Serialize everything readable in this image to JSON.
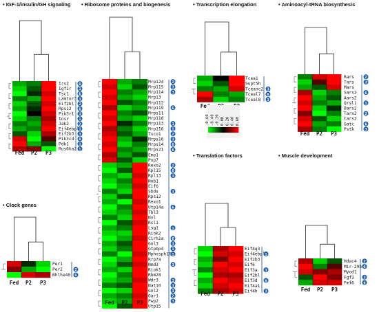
{
  "colors": {
    "high": "#ff0000",
    "mid": "#000000",
    "low": "#00ff00",
    "badge": "#1f5faa",
    "bracket": "#2a5aa0"
  },
  "color_scale": {
    "ticks": [
      "-0.60",
      "-0.40",
      "-0.20",
      "0.00",
      "0.20",
      "0.40",
      "0.60"
    ],
    "min": -0.6,
    "max": 0.6
  },
  "panels": [
    {
      "id": "igf",
      "title": "IGF-1/insulin/GH signaling",
      "conditions": [
        "Fed",
        "P2",
        "P3"
      ],
      "genes": [
        "Irs2",
        "Igf1r",
        "Tsc1",
        "Lamtor3",
        "Eif2bl",
        "Rps12",
        "Pik3r1",
        "Insr",
        "Jak2",
        "Eif4ebpl",
        "Eif2b3",
        "Pik3cd",
        "Pdk1",
        "Rus6ka2"
      ],
      "badges": [
        "6",
        "1",
        "6",
        "3",
        "2",
        "6",
        "3",
        "1",
        "2",
        "1",
        "3",
        "6",
        "1",
        "1"
      ],
      "values": [
        [
          -0.4,
          -0.3,
          0.6
        ],
        [
          -0.5,
          -0.2,
          0.6
        ],
        [
          -0.6,
          -0.1,
          0.5
        ],
        [
          -0.3,
          -0.4,
          0.6
        ],
        [
          -0.5,
          -0.2,
          0.5
        ],
        [
          -0.4,
          -0.1,
          0.6
        ],
        [
          -0.6,
          0.0,
          0.5
        ],
        [
          -0.5,
          -0.3,
          0.4
        ],
        [
          -0.3,
          -0.4,
          0.5
        ],
        [
          -0.4,
          -0.3,
          0.6
        ],
        [
          -0.2,
          -0.5,
          0.4
        ],
        [
          0.5,
          -0.6,
          0.2
        ],
        [
          0.6,
          -0.4,
          -0.2
        ],
        [
          0.4,
          0.3,
          -0.6
        ]
      ]
    },
    {
      "id": "ribo",
      "title": "Ribosome proteins and biogenesis",
      "conditions": [
        "Fed",
        "P2",
        "P3"
      ],
      "genes": [
        "Mrp124",
        "Mrp115",
        "Mrp114",
        "Mrp13",
        "Mrp112",
        "Mrp119",
        "Mrps11",
        "Mrp118",
        "Mrp113",
        "Mrp116",
        "Tsco1",
        "Mrps16",
        "Mrps14",
        "Mrps21",
        "Emp1",
        "Pop7",
        "Rexo2",
        "Rpl15",
        "Rpl13",
        "Nob1",
        "Eif6",
        "Sbds",
        "Rps12",
        "Rexo1",
        "Utp14a",
        "Tbl3",
        "Nvl",
        "Rcl1",
        "Lsg1",
        "Riok2",
        "Cirh1a",
        "Gnl3",
        "Gtpbp4",
        "Mphosph10",
        "Rrp7a",
        "Nmd3",
        "Riok1",
        "Rbm28",
        "Wdr3",
        "Nat10",
        "Gnl2",
        "Gar1",
        "Pwp2",
        "Utp15"
      ],
      "badges": [
        "2",
        "3",
        "3",
        "",
        "",
        "6",
        "",
        "",
        "3",
        "1",
        "2",
        "3",
        "6",
        "6",
        "",
        "",
        "2",
        "6",
        "3",
        "",
        "",
        "3",
        "",
        "",
        "6",
        "",
        "",
        "",
        "1",
        "",
        "6",
        "3",
        "1",
        "1",
        "",
        "3",
        "",
        "",
        "3",
        "3",
        "3",
        "2",
        "3",
        ""
      ],
      "values": [
        [
          0.6,
          -0.4,
          -0.3
        ],
        [
          0.5,
          -0.5,
          -0.2
        ],
        [
          0.6,
          -0.3,
          -0.4
        ],
        [
          0.5,
          -0.4,
          -0.5
        ],
        [
          0.6,
          -0.2,
          -0.3
        ],
        [
          0.4,
          -0.5,
          -0.4
        ],
        [
          0.6,
          -0.3,
          -0.2
        ],
        [
          0.5,
          -0.4,
          -0.5
        ],
        [
          0.6,
          -0.1,
          -0.3
        ],
        [
          0.4,
          -0.3,
          -0.5
        ],
        [
          0.5,
          -0.2,
          -0.4
        ],
        [
          0.6,
          -0.4,
          -0.1
        ],
        [
          0.5,
          -0.5,
          -0.3
        ],
        [
          0.6,
          -0.3,
          -0.4
        ],
        [
          0.4,
          -0.4,
          -0.2
        ],
        [
          0.5,
          -0.2,
          -0.5
        ],
        [
          -0.5,
          -0.4,
          0.6
        ],
        [
          -0.6,
          -0.2,
          0.6
        ],
        [
          -0.4,
          -0.5,
          0.5
        ],
        [
          -0.5,
          -0.3,
          0.6
        ],
        [
          -0.6,
          -0.4,
          0.5
        ],
        [
          -0.3,
          -0.5,
          0.6
        ],
        [
          -0.5,
          -0.2,
          0.6
        ],
        [
          -0.4,
          -0.6,
          0.5
        ],
        [
          -0.6,
          -0.3,
          0.6
        ],
        [
          -0.5,
          -0.4,
          0.5
        ],
        [
          -0.3,
          -0.5,
          0.6
        ],
        [
          -0.6,
          -0.2,
          0.5
        ],
        [
          -0.4,
          -0.3,
          0.6
        ],
        [
          -0.5,
          -0.5,
          0.6
        ],
        [
          -0.6,
          -0.4,
          0.5
        ],
        [
          -0.4,
          -0.2,
          0.6
        ],
        [
          -0.5,
          -0.3,
          0.6
        ],
        [
          -0.3,
          -0.6,
          0.5
        ],
        [
          -0.6,
          -0.4,
          0.6
        ],
        [
          -0.5,
          -0.2,
          0.5
        ],
        [
          -0.4,
          -0.5,
          0.6
        ],
        [
          -0.6,
          -0.3,
          0.6
        ],
        [
          -0.5,
          -0.4,
          0.5
        ],
        [
          -0.3,
          -0.2,
          0.6
        ],
        [
          -0.6,
          -0.5,
          0.6
        ],
        [
          -0.4,
          -0.3,
          0.5
        ],
        [
          -0.5,
          -0.4,
          0.6
        ],
        [
          -0.6,
          -0.2,
          0.6
        ]
      ]
    },
    {
      "id": "transcription",
      "title": "Transcription elongation",
      "conditions": [
        "Fed",
        "P2",
        "P3"
      ],
      "genes": [
        "Tcea1",
        "Supt5h",
        "Tceanc2",
        "Tceal7",
        "Tceal8"
      ],
      "badges": [
        "",
        "",
        "3",
        "6",
        "3"
      ],
      "values": [
        [
          -0.4,
          0.0,
          0.6
        ],
        [
          -0.5,
          -0.2,
          0.6
        ],
        [
          -0.3,
          -0.4,
          0.5
        ],
        [
          0.6,
          -0.3,
          -0.4
        ],
        [
          0.4,
          -0.5,
          -0.3
        ]
      ]
    },
    {
      "id": "trna",
      "title": "Aminoacyl-tRNA  biosynthesis",
      "conditions": [
        "Fed",
        "P2",
        "P3"
      ],
      "genes": [
        "Rars",
        "Tars",
        "Mars",
        "Sars2",
        "Aars2",
        "Qrsl1",
        "Dars2",
        "Tars2",
        "Cars2",
        "Gatc",
        "Pstk"
      ],
      "badges": [
        "2",
        "3",
        "",
        "6",
        "",
        "1",
        "",
        "2",
        "",
        "6",
        "3"
      ],
      "values": [
        [
          -0.3,
          0.5,
          0.6
        ],
        [
          -0.5,
          0.2,
          0.6
        ],
        [
          -0.4,
          -0.2,
          0.5
        ],
        [
          0.4,
          -0.5,
          -0.3
        ],
        [
          0.6,
          -0.4,
          -0.2
        ],
        [
          0.5,
          -0.3,
          -0.4
        ],
        [
          0.6,
          -0.5,
          -0.1
        ],
        [
          0.3,
          -0.6,
          -0.3
        ],
        [
          0.5,
          -0.2,
          -0.5
        ],
        [
          0.6,
          -0.4,
          -0.3
        ],
        [
          0.4,
          -0.3,
          -0.6
        ]
      ]
    },
    {
      "id": "clock",
      "title": "Clock genes",
      "conditions": [
        "Fed",
        "P2",
        "P3"
      ],
      "genes": [
        "Per1",
        "Per2",
        "Bhlhe40"
      ],
      "badges": [
        "",
        "2",
        "6"
      ],
      "values": [
        [
          0.5,
          -0.1,
          -0.5
        ],
        [
          0.3,
          -0.4,
          -0.6
        ],
        [
          -0.6,
          0.5,
          0.4
        ]
      ]
    },
    {
      "id": "translation",
      "title": "Translation factors",
      "conditions": [
        "Fed",
        "P2",
        "P3"
      ],
      "genes": [
        "Eif4g3",
        "Eif4ebpl",
        "Eif2b3",
        "Eif6",
        "Eif3a",
        "Eif2bl",
        "Eif3d",
        "Eif4a1",
        "Eif4h"
      ],
      "badges": [
        "",
        "1",
        "",
        "",
        "3",
        "",
        "6",
        "",
        "3"
      ],
      "values": [
        [
          -0.5,
          0.4,
          0.6
        ],
        [
          -0.6,
          0.5,
          0.5
        ],
        [
          -0.4,
          0.3,
          0.6
        ],
        [
          -0.5,
          0.6,
          0.5
        ],
        [
          -0.3,
          0.5,
          0.6
        ],
        [
          -0.6,
          0.4,
          0.4
        ],
        [
          -0.4,
          0.6,
          0.5
        ],
        [
          -0.5,
          0.5,
          0.6
        ],
        [
          -0.3,
          0.4,
          0.5
        ]
      ]
    },
    {
      "id": "muscle",
      "title": "Muscle development",
      "conditions": [
        "Fed",
        "P2",
        "P3"
      ],
      "genes": [
        "Hdac4",
        "Mir-29b-2",
        "Myod1",
        "Fgf2",
        "Fmf6"
      ],
      "badges": [
        "2",
        "6",
        "",
        "3",
        "6"
      ],
      "values": [
        [
          0.4,
          -0.5,
          -0.2
        ],
        [
          0.6,
          -0.3,
          0.2
        ],
        [
          0.5,
          0.3,
          0.4
        ],
        [
          -0.2,
          0.6,
          0.3
        ],
        [
          -0.4,
          0.5,
          0.5
        ]
      ]
    }
  ]
}
